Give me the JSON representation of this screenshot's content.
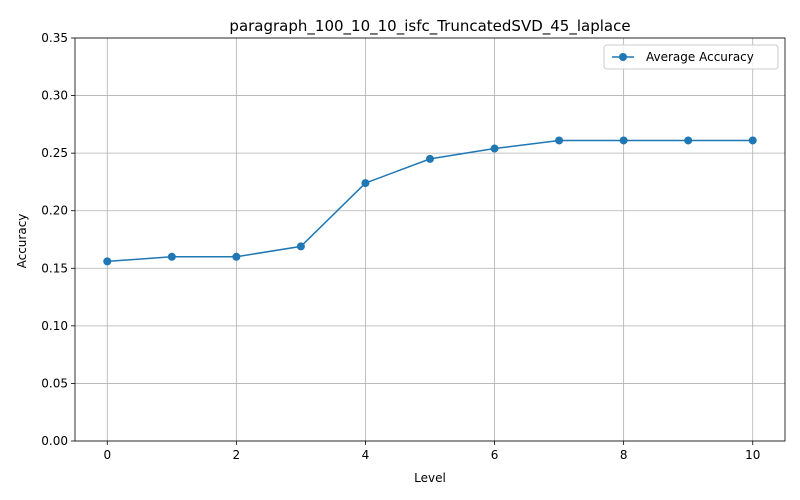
{
  "chart_data": {
    "type": "line",
    "title": "paragraph_100_10_10_isfc_TruncatedSVD_45_laplace",
    "xlabel": "Level",
    "ylabel": "Accuracy",
    "xlim": [
      -0.5,
      10.5
    ],
    "ylim": [
      0,
      0.35
    ],
    "xticks": [
      0,
      2,
      4,
      6,
      8,
      10
    ],
    "xtick_labels": [
      "0",
      "2",
      "4",
      "6",
      "8",
      "10"
    ],
    "yticks": [
      0,
      0.05,
      0.1,
      0.15,
      0.2,
      0.25,
      0.3,
      0.35
    ],
    "ytick_labels": [
      "0.00",
      "0.05",
      "0.10",
      "0.15",
      "0.20",
      "0.25",
      "0.30",
      "0.35"
    ],
    "grid": true,
    "legend_position": "top-right",
    "series": [
      {
        "name": "Average Accuracy",
        "color": "#1f77b4",
        "marker": "circle",
        "x": [
          0,
          1,
          2,
          3,
          4,
          5,
          6,
          7,
          8,
          9,
          10
        ],
        "y": [
          0.156,
          0.16,
          0.16,
          0.169,
          0.224,
          0.245,
          0.254,
          0.261,
          0.261,
          0.261,
          0.261
        ]
      }
    ]
  }
}
